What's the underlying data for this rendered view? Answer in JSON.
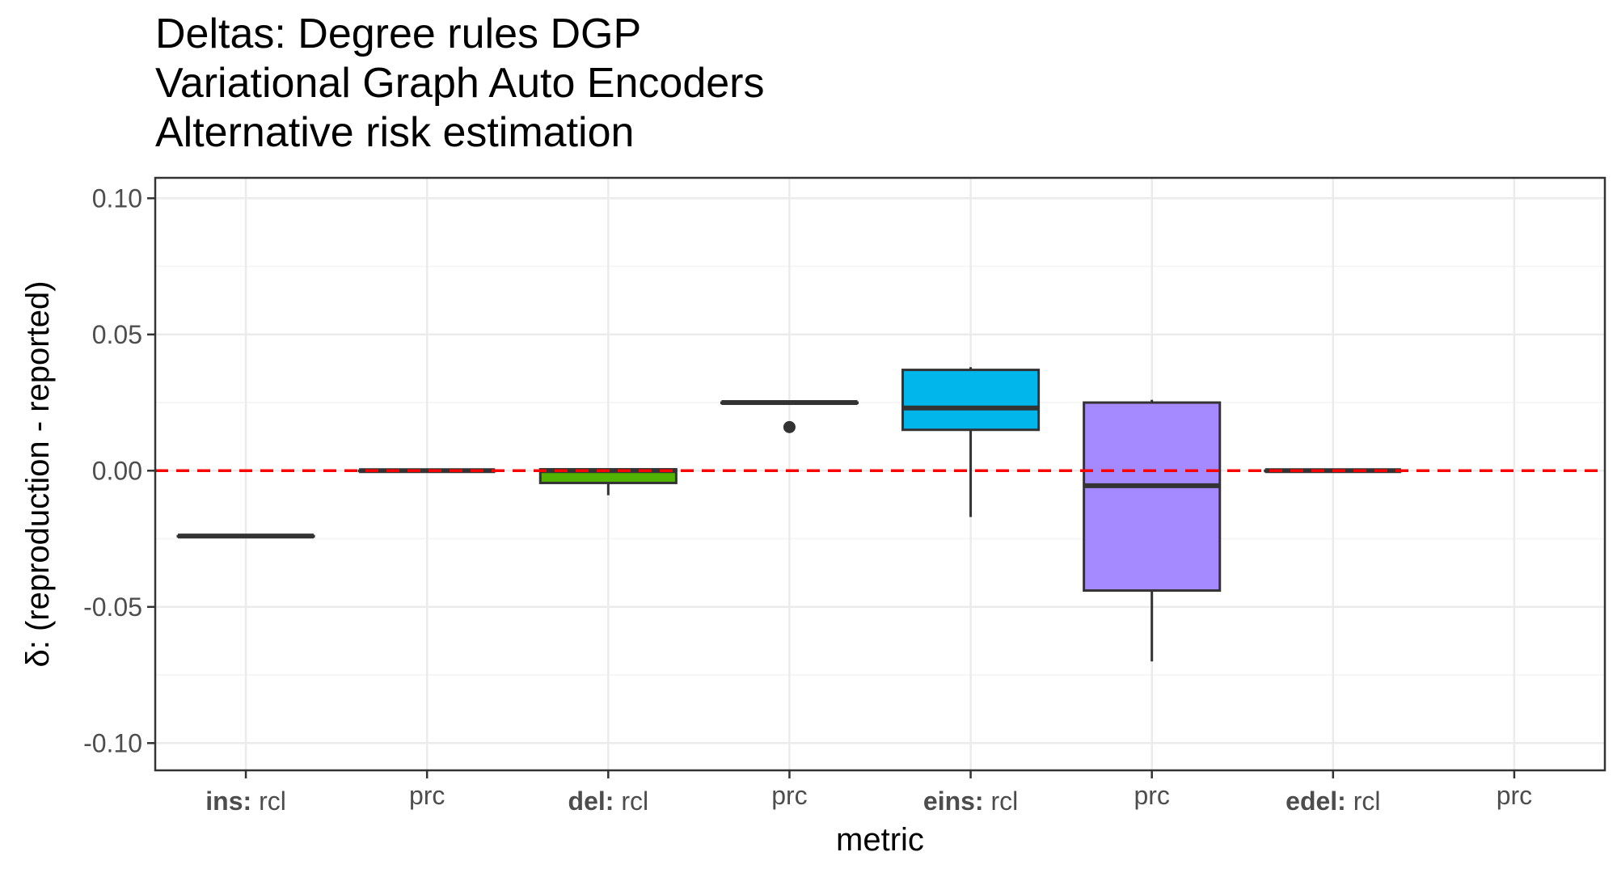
{
  "title_lines": [
    "Deltas: Degree rules DGP",
    "Variational Graph Auto Encoders",
    "Alternative risk estimation"
  ],
  "colors": {
    "reference_line": "#ff0000",
    "box_stroke": "#333333",
    "grid_major": "#ebebeb",
    "grid_minor": "#f3f3f3",
    "panel_border": "#333333"
  },
  "chart_data": {
    "type": "box",
    "title": "Deltas: Degree rules DGP\nVariational Graph Auto Encoders\nAlternative risk estimation",
    "xlabel": "metric",
    "ylabel": "δ: (reproduction - reported)",
    "ylim": [
      -0.11,
      0.1075
    ],
    "yticks": [
      0.1,
      0.05,
      0.0,
      -0.05,
      -0.1
    ],
    "ytick_labels": [
      "0.10",
      "0.05",
      "0.00",
      "-0.05",
      "-0.10"
    ],
    "grid": true,
    "reference_line": {
      "y": 0,
      "style": "dashed"
    },
    "categories": [
      {
        "bold": "ins:",
        "rest": " rcl",
        "fill": "#f8766d",
        "box": {
          "lower_whisker": -0.024,
          "q1": -0.024,
          "median": -0.024,
          "q3": -0.024,
          "upper_whisker": -0.024
        },
        "outliers": []
      },
      {
        "bold": "",
        "rest": "prc",
        "fill": "#f8766d",
        "box": {
          "lower_whisker": 0.0,
          "q1": 0.0,
          "median": 0.0,
          "q3": 0.0,
          "upper_whisker": 0.0
        },
        "outliers": []
      },
      {
        "bold": "del:",
        "rest": " rcl",
        "fill": "#53b400",
        "box": {
          "lower_whisker": -0.009,
          "q1": -0.0045,
          "median": 0.0,
          "q3": 0.0005,
          "upper_whisker": 0.0005
        },
        "outliers": []
      },
      {
        "bold": "",
        "rest": "prc",
        "fill": "#f8766d",
        "box": {
          "lower_whisker": 0.025,
          "q1": 0.025,
          "median": 0.025,
          "q3": 0.025,
          "upper_whisker": 0.025
        },
        "outliers": [
          0.016
        ]
      },
      {
        "bold": "eins:",
        "rest": " rcl",
        "fill": "#00b6eb",
        "box": {
          "lower_whisker": -0.017,
          "q1": 0.015,
          "median": 0.023,
          "q3": 0.037,
          "upper_whisker": 0.038
        },
        "outliers": []
      },
      {
        "bold": "",
        "rest": "prc",
        "fill": "#a58aff",
        "box": {
          "lower_whisker": -0.07,
          "q1": -0.044,
          "median": -0.0055,
          "q3": 0.025,
          "upper_whisker": 0.026
        },
        "outliers": []
      },
      {
        "bold": "edel:",
        "rest": " rcl",
        "fill": "#f8766d",
        "box": {
          "lower_whisker": 0.0,
          "q1": 0.0,
          "median": 0.0,
          "q3": 0.0,
          "upper_whisker": 0.0
        },
        "outliers": []
      },
      {
        "bold": "",
        "rest": "prc",
        "fill": null,
        "box": null,
        "outliers": []
      }
    ]
  }
}
